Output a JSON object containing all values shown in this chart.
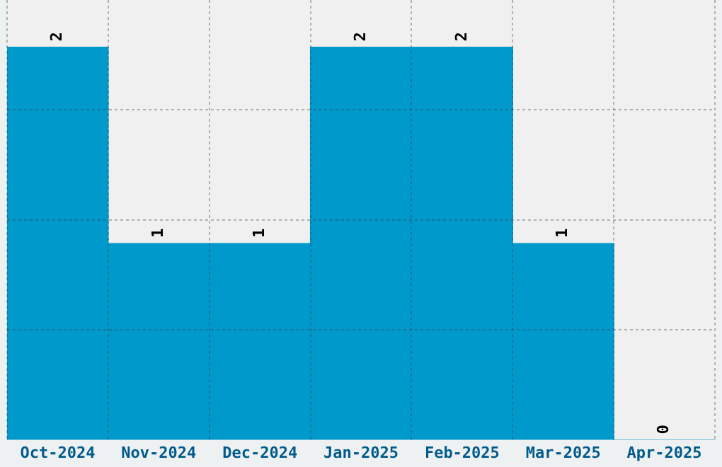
{
  "chart_data": {
    "type": "bar",
    "categories": [
      "Oct-2024",
      "Nov-2024",
      "Dec-2024",
      "Jan-2025",
      "Feb-2025",
      "Mar-2025",
      "Apr-2025"
    ],
    "values": [
      2,
      1,
      1,
      2,
      2,
      1,
      0
    ],
    "color": "#0099cc",
    "ylim": [
      0,
      2.24
    ],
    "yticks": [
      {
        "value": 0.56,
        "label": null
      },
      {
        "value": 1.12,
        "label": null
      },
      {
        "value": 1.68,
        "label": null
      }
    ],
    "tick_labels": "x",
    "grid": true,
    "data_labels": true
  }
}
